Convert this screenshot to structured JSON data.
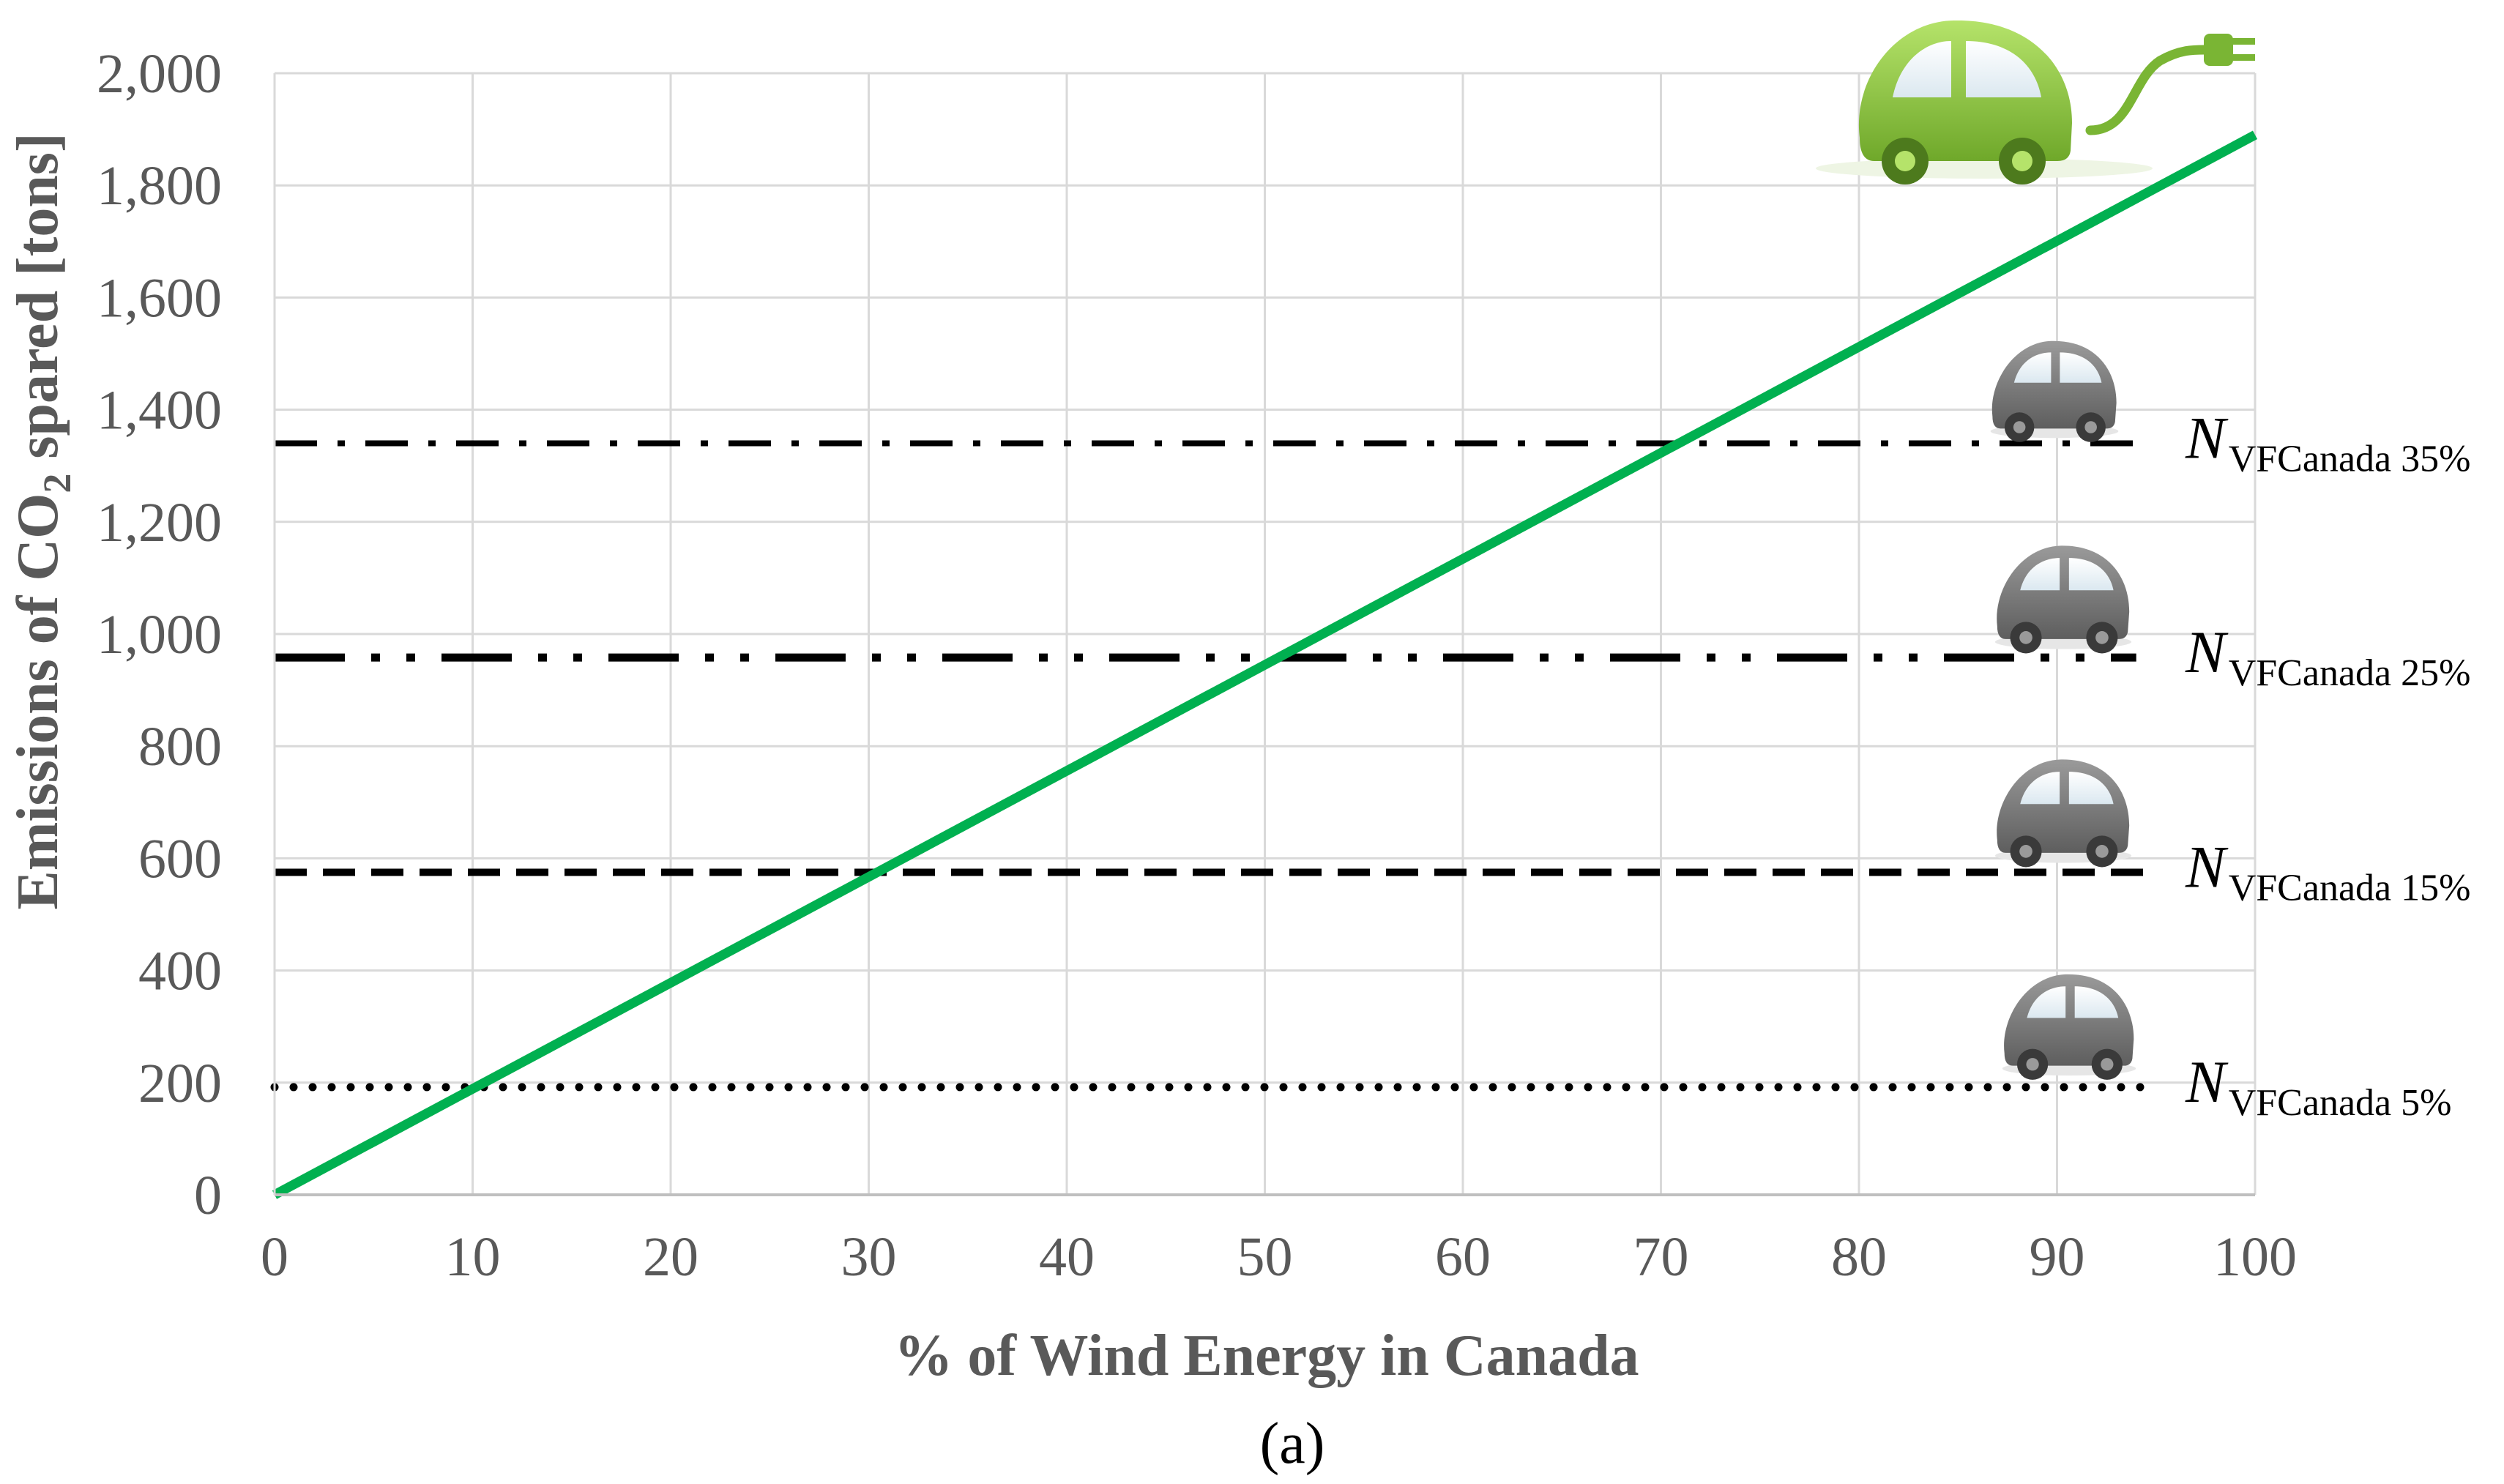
{
  "chart_data": {
    "type": "line",
    "xlabel": "% of Wind Energy in Canada",
    "ylabel_parts": [
      "Emissions of CO",
      "2",
      " spared [tons]"
    ],
    "caption": "(a)",
    "xlim": [
      0,
      100
    ],
    "ylim": [
      0,
      2000
    ],
    "x_ticks": [
      0,
      10,
      20,
      30,
      40,
      50,
      60,
      70,
      80,
      90,
      100
    ],
    "y_ticks": [
      0,
      200,
      400,
      600,
      800,
      1000,
      1200,
      1400,
      1600,
      1800,
      2000
    ],
    "x_tick_labels": [
      "0",
      "10",
      "20",
      "30",
      "40",
      "50",
      "60",
      "70",
      "80",
      "90",
      "100"
    ],
    "y_tick_labels": [
      "0",
      "200",
      "400",
      "600",
      "800",
      "1,000",
      "1,200",
      "1,400",
      "1,600",
      "1,800",
      "2,000"
    ],
    "grid": true,
    "series": [
      {
        "x": [
          0,
          100
        ],
        "y": [
          0,
          1890
        ],
        "color": "#00b050",
        "style": "solid"
      }
    ],
    "reference_lines": [
      {
        "label_main": "N",
        "label_sub": "VFCanada 35%",
        "y": 1340,
        "x_end": 94,
        "style": "dashdot",
        "color": "#000000"
      },
      {
        "label_main": "N",
        "label_sub": "VFCanada 25%",
        "y": 958,
        "x_end": 94,
        "style": "longdashdotdot",
        "color": "#000000"
      },
      {
        "label_main": "N",
        "label_sub": "VFCanada 15%",
        "y": 575,
        "x_end": 95,
        "style": "dashed",
        "color": "#000000"
      },
      {
        "label_main": "N",
        "label_sub": "VFCanada 5%",
        "y": 192,
        "x_end": 95,
        "style": "dotted",
        "color": "#000000"
      }
    ],
    "icons": [
      {
        "name": "electric-car-icon",
        "color": "#8cc63f"
      },
      {
        "name": "car-icon",
        "color": "#7f7f7f"
      },
      {
        "name": "car-icon",
        "color": "#7f7f7f"
      },
      {
        "name": "car-icon",
        "color": "#7f7f7f"
      },
      {
        "name": "car-icon",
        "color": "#7f7f7f"
      }
    ]
  }
}
